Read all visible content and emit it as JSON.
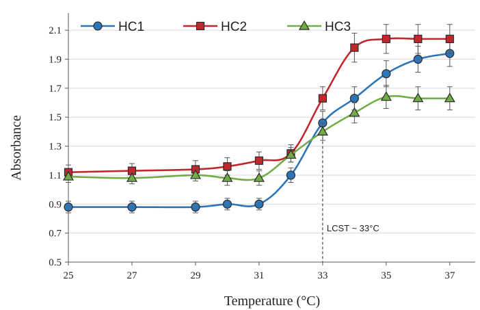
{
  "chart_data": {
    "type": "line",
    "title": "",
    "xlabel": "Temperature (°C)",
    "ylabel": "Absorbance",
    "xlim": [
      25,
      37.8
    ],
    "ylim": [
      0.5,
      2.2
    ],
    "xticks": [
      25,
      27,
      29,
      31,
      33,
      35,
      37
    ],
    "yticks": [
      0.5,
      0.7,
      0.9,
      1.1,
      1.3,
      1.5,
      1.7,
      1.9,
      2.1
    ],
    "ytick_labels": [
      "0.5",
      "0.7",
      "0.9",
      "1.1",
      "1.3",
      "1.5",
      "1.7",
      "1.9",
      "2.1"
    ],
    "legend_position": "top",
    "annotation": {
      "text": "LCST ~ 33°C",
      "x": 33
    },
    "series": [
      {
        "name": "HC1",
        "color": "#2E75B6",
        "marker": "circle",
        "x": [
          25,
          27,
          29,
          30,
          31,
          32,
          33,
          34,
          35,
          36,
          37
        ],
        "y": [
          0.88,
          0.88,
          0.88,
          0.9,
          0.9,
          1.1,
          1.46,
          1.63,
          1.8,
          1.9,
          1.94
        ],
        "err": [
          0.04,
          0.04,
          0.04,
          0.04,
          0.04,
          0.05,
          0.08,
          0.08,
          0.09,
          0.09,
          0.09
        ]
      },
      {
        "name": "HC2",
        "color": "#C0282D",
        "marker": "square",
        "x": [
          25,
          27,
          29,
          30,
          31,
          32,
          33,
          34,
          35,
          36,
          37
        ],
        "y": [
          1.12,
          1.13,
          1.14,
          1.16,
          1.2,
          1.25,
          1.63,
          1.98,
          2.04,
          2.04,
          2.04
        ],
        "err": [
          0.05,
          0.05,
          0.06,
          0.06,
          0.06,
          0.06,
          0.08,
          0.1,
          0.1,
          0.1,
          0.1
        ]
      },
      {
        "name": "HC3",
        "color": "#70AD47",
        "marker": "triangle",
        "x": [
          25,
          27,
          29,
          30,
          31,
          32,
          33,
          34,
          35,
          36,
          37
        ],
        "y": [
          1.09,
          1.08,
          1.1,
          1.08,
          1.08,
          1.24,
          1.4,
          1.53,
          1.64,
          1.63,
          1.63
        ],
        "err": [
          0.04,
          0.04,
          0.04,
          0.05,
          0.05,
          0.05,
          0.06,
          0.07,
          0.08,
          0.08,
          0.08
        ]
      }
    ]
  }
}
